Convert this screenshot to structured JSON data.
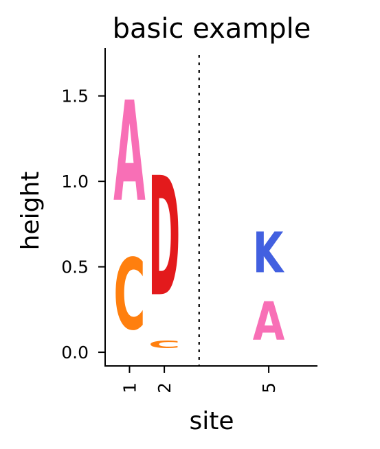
{
  "chart_data": {
    "type": "logo",
    "title": "basic example",
    "xlabel": "site",
    "ylabel": "height",
    "ylim": [
      -0.08,
      1.78
    ],
    "yticks": [
      {
        "value": 0.0,
        "label": "0.0"
      },
      {
        "value": 0.5,
        "label": "0.5"
      },
      {
        "value": 1.0,
        "label": "1.0"
      },
      {
        "value": 1.5,
        "label": "1.5"
      }
    ],
    "positions": [
      {
        "x": 1,
        "label": "1"
      },
      {
        "x": 2,
        "label": "2"
      },
      {
        "x": 5,
        "label": "5"
      }
    ],
    "stacks": [
      {
        "site": "1",
        "x": 1,
        "letters": [
          {
            "letter": "C",
            "bottom": 0.0,
            "top": 0.67,
            "color": "#FF7F0E"
          },
          {
            "letter": "A",
            "bottom": 0.7,
            "top": 1.64,
            "color": "#F86FB6"
          }
        ]
      },
      {
        "site": "2",
        "x": 2,
        "letters": [
          {
            "letter": "C",
            "bottom": 0.01,
            "top": 0.08,
            "color": "#FF7F0E"
          },
          {
            "letter": "D",
            "bottom": 0.11,
            "top": 1.23,
            "color": "#E31A1C"
          }
        ]
      },
      {
        "site": "5",
        "x": 5,
        "letters": [
          {
            "letter": "A",
            "bottom": 0.0,
            "top": 0.36,
            "color": "#F86FB6"
          },
          {
            "letter": "K",
            "bottom": 0.39,
            "top": 0.77,
            "color": "#4260E0"
          }
        ]
      }
    ],
    "separator": {
      "x": 3.0,
      "style": "dotted"
    },
    "grid": false,
    "legend": "none"
  }
}
